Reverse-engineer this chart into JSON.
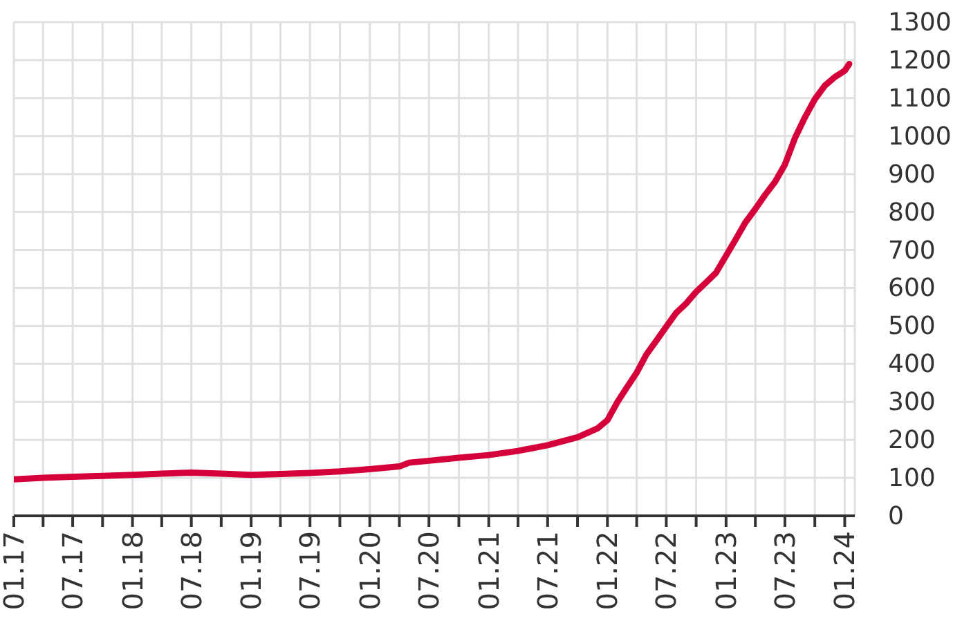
{
  "chart_data": {
    "type": "line",
    "x": [
      "2017-01",
      "2017-04",
      "2017-07",
      "2017-10",
      "2018-01",
      "2018-04",
      "2018-07",
      "2018-10",
      "2019-01",
      "2019-04",
      "2019-07",
      "2019-10",
      "2020-01",
      "2020-04",
      "2020-05",
      "2020-07",
      "2020-10",
      "2021-01",
      "2021-04",
      "2021-07",
      "2021-10",
      "2021-12",
      "2022-01",
      "2022-02",
      "2022-03",
      "2022-04",
      "2022-05",
      "2022-06",
      "2022-07",
      "2022-08",
      "2022-09",
      "2022-10",
      "2022-11",
      "2022-12",
      "2023-01",
      "2023-02",
      "2023-03",
      "2023-04",
      "2023-05",
      "2023-06",
      "2023-07",
      "2023-08",
      "2023-09",
      "2023-10",
      "2023-11",
      "2023-12",
      "2024-01",
      "2024-01-15"
    ],
    "values": [
      96,
      100,
      103,
      105,
      108,
      111,
      114,
      111,
      108,
      110,
      113,
      117,
      123,
      130,
      140,
      145,
      153,
      160,
      171,
      186,
      207,
      230,
      252,
      300,
      337,
      377,
      425,
      462,
      498,
      535,
      560,
      590,
      615,
      640,
      685,
      730,
      772,
      808,
      845,
      880,
      925,
      995,
      1050,
      1097,
      1133,
      1155,
      1172,
      1190
    ],
    "color": "#d5003a",
    "xlim": [
      "2017-01",
      "2024-02"
    ],
    "xticks": [
      {
        "value": "2017-01",
        "label": "01.17"
      },
      {
        "value": "2017-04",
        "label": null
      },
      {
        "value": "2017-07",
        "label": "07.17"
      },
      {
        "value": "2017-10",
        "label": null
      },
      {
        "value": "2018-01",
        "label": "01.18"
      },
      {
        "value": "2018-04",
        "label": null
      },
      {
        "value": "2018-07",
        "label": "07.18"
      },
      {
        "value": "2018-10",
        "label": null
      },
      {
        "value": "2019-01",
        "label": "01.19"
      },
      {
        "value": "2019-04",
        "label": null
      },
      {
        "value": "2019-07",
        "label": "07.19"
      },
      {
        "value": "2019-10",
        "label": null
      },
      {
        "value": "2020-01",
        "label": "01.20"
      },
      {
        "value": "2020-04",
        "label": null
      },
      {
        "value": "2020-07",
        "label": "07.20"
      },
      {
        "value": "2020-10",
        "label": null
      },
      {
        "value": "2021-01",
        "label": "01.21"
      },
      {
        "value": "2021-04",
        "label": null
      },
      {
        "value": "2021-07",
        "label": "07.21"
      },
      {
        "value": "2021-10",
        "label": null
      },
      {
        "value": "2022-01",
        "label": "01.22"
      },
      {
        "value": "2022-04",
        "label": null
      },
      {
        "value": "2022-07",
        "label": "07.22"
      },
      {
        "value": "2022-10",
        "label": null
      },
      {
        "value": "2023-01",
        "label": "01.23"
      },
      {
        "value": "2023-04",
        "label": null
      },
      {
        "value": "2023-07",
        "label": "07.23"
      },
      {
        "value": "2023-10",
        "label": null
      },
      {
        "value": "2024-01",
        "label": "01.24"
      }
    ],
    "ylim": [
      0,
      1300
    ],
    "yticks": [
      0,
      100,
      200,
      300,
      400,
      500,
      600,
      700,
      800,
      900,
      1000,
      1100,
      1200,
      1300
    ],
    "grid": true,
    "marker": "none",
    "line_style": "solid"
  }
}
